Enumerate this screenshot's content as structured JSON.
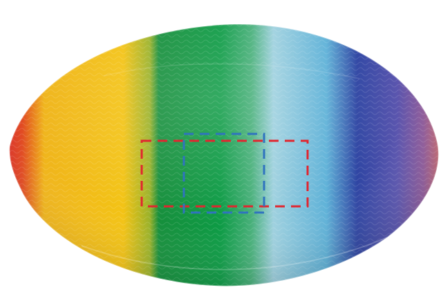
{
  "image": {
    "subject": "rainbow-striped-oval-ball",
    "background_color": "#ffffff",
    "stripe_colors": [
      "#d8262a",
      "#f0b51c",
      "#f3c315",
      "#168f3c",
      "#0d9b45",
      "#9fd1df",
      "#5fb2d8",
      "#2f45a3",
      "#5a55ae",
      "#c86b6e"
    ],
    "annotation_boxes": [
      {
        "name": "red-dashed-box",
        "color": "#e0262f"
      },
      {
        "name": "blue-dashed-box",
        "color": "#2f73bf"
      }
    ]
  }
}
